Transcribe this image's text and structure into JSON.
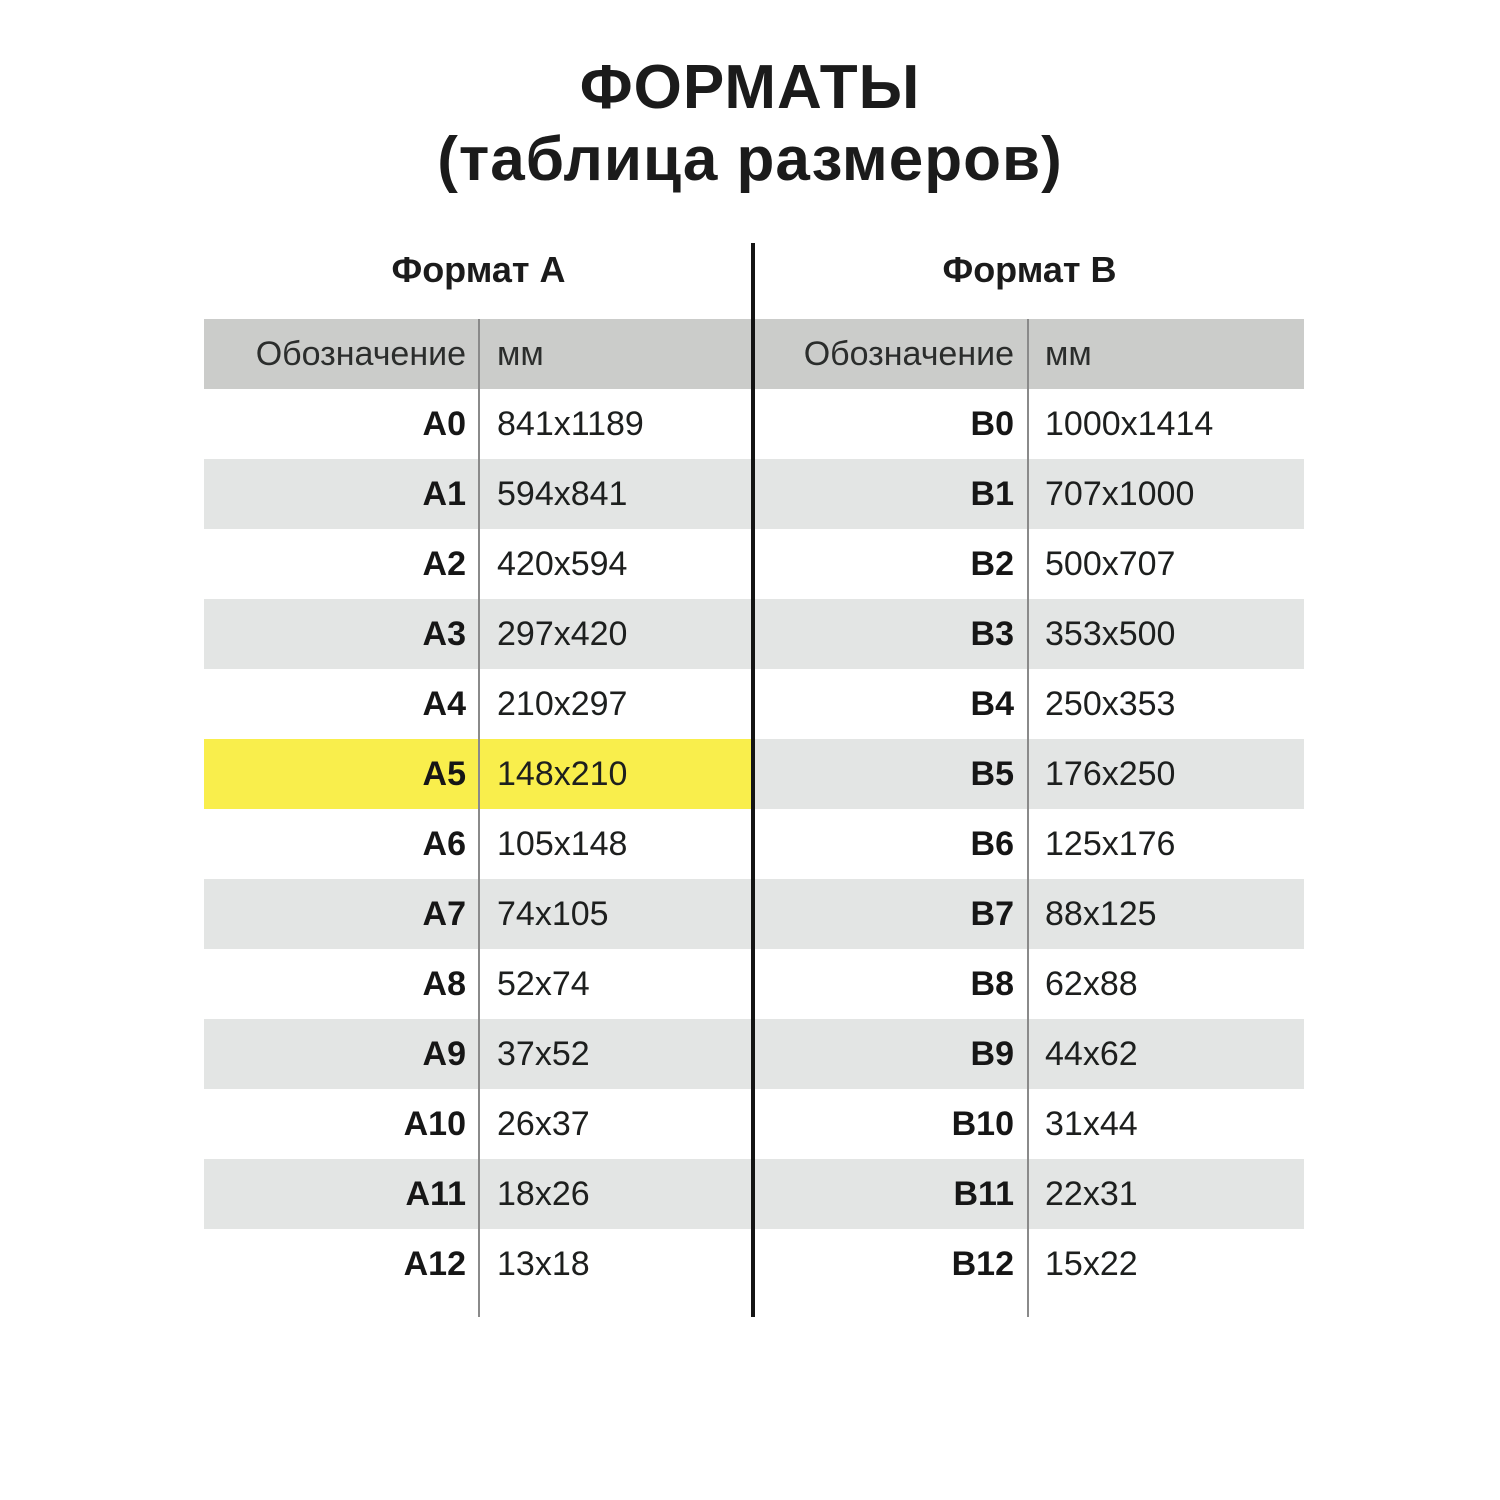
{
  "title": {
    "line1": "ФОРМАТЫ",
    "line2": "(таблица размеров)"
  },
  "colors": {
    "header_bg": "#cbccca",
    "stripe": "#e3e5e4",
    "highlight_yellow": "#f9ee4c",
    "separator_line": "#8a8a8a",
    "center_line": "#141414",
    "background": "#ffffff",
    "text": "#1d1f1e"
  },
  "chart_data": {
    "type": "table",
    "title": "ФОРМАТЫ (таблица размеров)",
    "highlighted_row": "A5",
    "highlight_color": "#f9ee4c",
    "layout": {
      "grid": "no horizontal lines, alternating row stripes, vertical separators, black center divider"
    },
    "sections": [
      {
        "name": "Формат A",
        "columns": [
          "Обозначение",
          "мм"
        ],
        "rows": [
          [
            "A0",
            "841x1189"
          ],
          [
            "A1",
            "594x841"
          ],
          [
            "A2",
            "420x594"
          ],
          [
            "A3",
            "297x420"
          ],
          [
            "A4",
            "210x297"
          ],
          [
            "A5",
            "148x210"
          ],
          [
            "A6",
            "105x148"
          ],
          [
            "A7",
            "74x105"
          ],
          [
            "A8",
            "52x74"
          ],
          [
            "A9",
            "37x52"
          ],
          [
            "A10",
            "26x37"
          ],
          [
            "A11",
            "18x26"
          ],
          [
            "A12",
            "13x18"
          ]
        ]
      },
      {
        "name": "Формат B",
        "columns": [
          "Обозначение",
          "мм"
        ],
        "rows": [
          [
            "B0",
            "1000x1414"
          ],
          [
            "B1",
            "707x1000"
          ],
          [
            "B2",
            "500x707"
          ],
          [
            "B3",
            "353x500"
          ],
          [
            "B4",
            "250x353"
          ],
          [
            "B5",
            "176x250"
          ],
          [
            "B6",
            "125x176"
          ],
          [
            "B7",
            "88x125"
          ],
          [
            "B8",
            "62x88"
          ],
          [
            "B9",
            "44x62"
          ],
          [
            "B10",
            "31x44"
          ],
          [
            "B11",
            "22x31"
          ],
          [
            "B12",
            "15x22"
          ]
        ]
      }
    ]
  }
}
